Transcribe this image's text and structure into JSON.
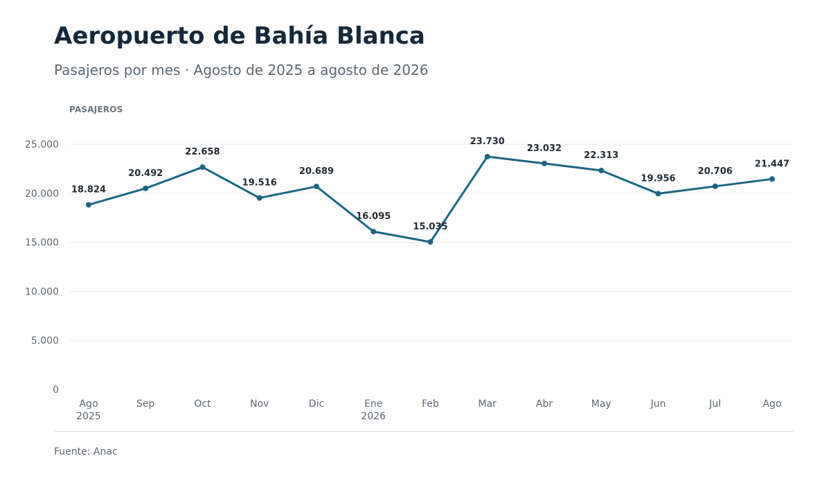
{
  "title": "Aeropuerto de Bahía Blanca",
  "subtitle": "Pasajeros por mes · Agosto de 2025 a agosto de 2026",
  "source": "Fuente: Anac",
  "colors": {
    "line": "#1a6684",
    "grid": "#e8eaec",
    "tick_text": "#5c6670",
    "label_text": "#222b33"
  },
  "chart_data": {
    "type": "line",
    "title": "Aeropuerto de Bahía Blanca",
    "subtitle": "Pasajeros por mes · Agosto de 2025 a agosto de 2026",
    "ylabel": "PASAJEROS",
    "xlabel": "",
    "categories": [
      [
        "Ago",
        "2025"
      ],
      [
        "Sep"
      ],
      [
        "Oct"
      ],
      [
        "Nov"
      ],
      [
        "Dic"
      ],
      [
        "Ene",
        "2026"
      ],
      [
        "Feb"
      ],
      [
        "Mar"
      ],
      [
        "Abr"
      ],
      [
        "May"
      ],
      [
        "Jun"
      ],
      [
        "Jul"
      ],
      [
        "Ago"
      ]
    ],
    "series": [
      {
        "values": [
          18824,
          20492,
          22658,
          19516,
          20689,
          16095,
          15035,
          23730,
          23032,
          22313,
          19956,
          20706,
          21447
        ],
        "labels": [
          "18.824",
          "20.492",
          "22.658",
          "19.516",
          "20.689",
          "16.095",
          "15.035",
          "23.730",
          "23.032",
          "22.313",
          "19.956",
          "20.706",
          "21.447"
        ]
      }
    ],
    "yticks": [
      0,
      5000,
      10000,
      15000,
      20000,
      25000
    ],
    "ytick_labels": [
      "0",
      "5.000",
      "10.000",
      "15.000",
      "20.000",
      "25.000"
    ],
    "ylim": [
      0,
      25000
    ],
    "grid": true,
    "legend": "none"
  }
}
